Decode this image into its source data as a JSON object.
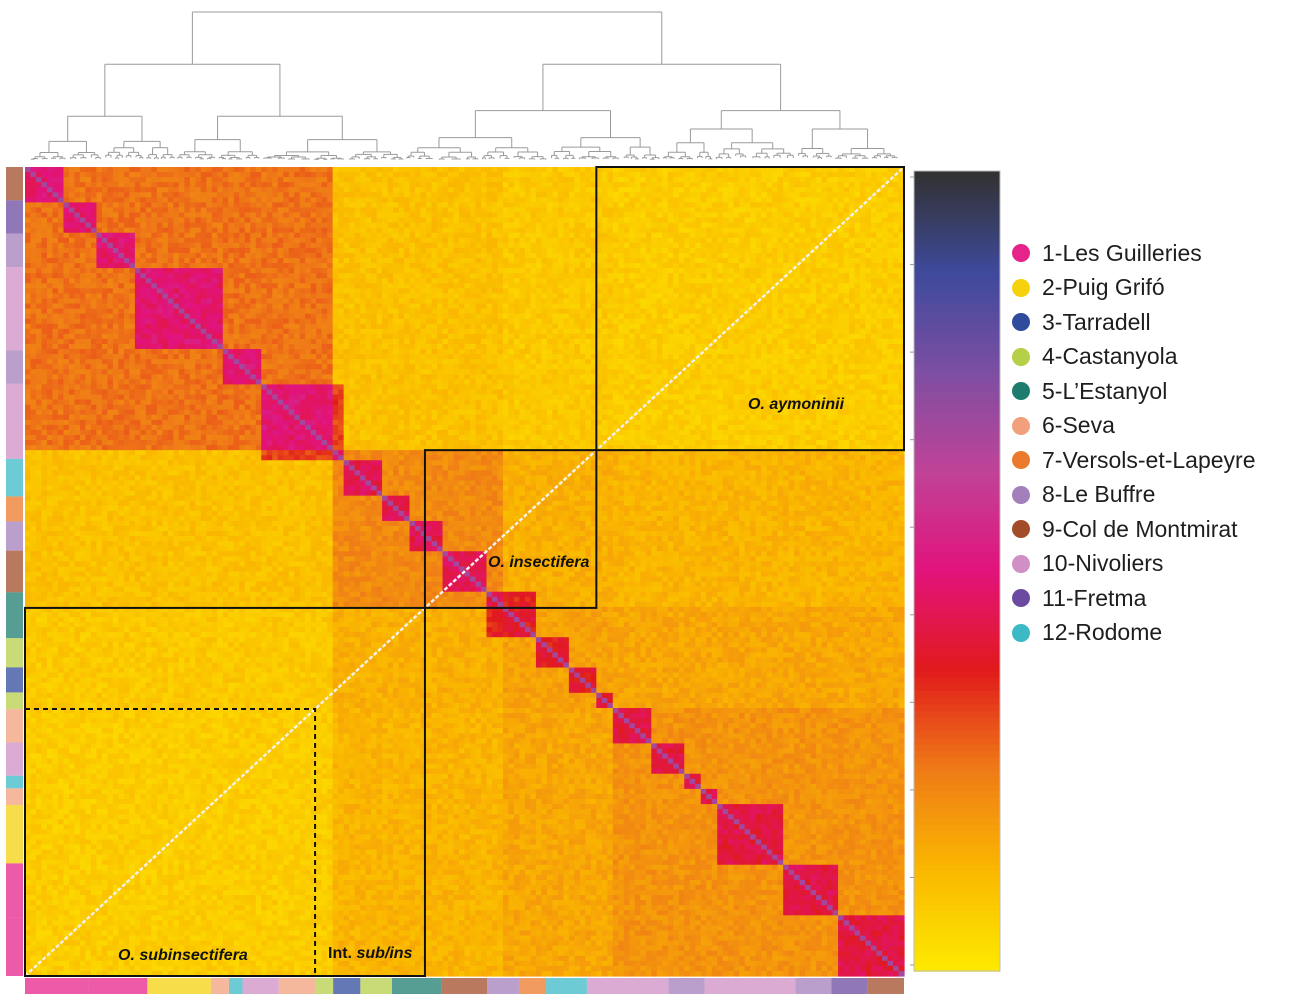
{
  "chart_data": {
    "type": "heatmap",
    "title": "",
    "matrix_size": 160,
    "scale": {
      "stops": [
        "#fde800",
        "#fab700",
        "#ef7b17",
        "#e11a1c",
        "#e2137c",
        "#c04398",
        "#7d4ea2",
        "#3e4a9c",
        "#323232"
      ]
    },
    "blocks": [
      {
        "label": "O. aymoninii",
        "start": 0.0,
        "end": 0.35
      },
      {
        "label": "O. insectifera",
        "start": 0.35,
        "end": 0.545
      },
      {
        "label": "Int. sub/ins",
        "start": 0.545,
        "end": 0.67
      },
      {
        "label": "O. subinsectifera",
        "start": 0.67,
        "end": 1.0
      }
    ],
    "block_labels": [
      {
        "name": "label-aymoninii",
        "text": "O. aymoninii",
        "italic_all": true
      },
      {
        "name": "label-insectifera",
        "text": "O. insectifera",
        "italic_all": true
      },
      {
        "name": "label-subinsectifera",
        "text": "O. subinsectifera",
        "italic_all": true
      },
      {
        "name": "label-intermediate",
        "prefix": "Int. ",
        "italic": "sub/ins"
      }
    ],
    "population_track": [
      {
        "pop": 9,
        "frac": 0.04
      },
      {
        "pop": 11,
        "frac": 0.04
      },
      {
        "pop": 8,
        "frac": 0.04
      },
      {
        "pop": 10,
        "frac": 0.1
      },
      {
        "pop": 8,
        "frac": 0.04
      },
      {
        "pop": 10,
        "frac": 0.09
      },
      {
        "pop": 12,
        "frac": 0.045
      },
      {
        "pop": 7,
        "frac": 0.03
      },
      {
        "pop": 8,
        "frac": 0.035
      },
      {
        "pop": 9,
        "frac": 0.05
      },
      {
        "pop": 5,
        "frac": 0.055
      },
      {
        "pop": 4,
        "frac": 0.035
      },
      {
        "pop": 3,
        "frac": 0.03
      },
      {
        "pop": 4,
        "frac": 0.02
      },
      {
        "pop": 6,
        "frac": 0.04
      },
      {
        "pop": 10,
        "frac": 0.04
      },
      {
        "pop": 12,
        "frac": 0.015
      },
      {
        "pop": 6,
        "frac": 0.02
      },
      {
        "pop": 2,
        "frac": 0.07
      },
      {
        "pop": 1,
        "frac": 0.065
      },
      {
        "pop": 1,
        "frac": 0.07
      }
    ]
  },
  "legend": {
    "items": [
      {
        "label": "1-Les Guilleries",
        "color": "#e6238b"
      },
      {
        "label": "2-Puig Grifó",
        "color": "#f6d20e"
      },
      {
        "label": "3-Tarradell",
        "color": "#2f4b9b"
      },
      {
        "label": "4-Castanyola",
        "color": "#b5cf49"
      },
      {
        "label": "5-L’Estanyol",
        "color": "#1e7c6f"
      },
      {
        "label": "6-Seva",
        "color": "#f2a07b"
      },
      {
        "label": "7-Versols-et-Lapeyre",
        "color": "#ec7a2c"
      },
      {
        "label": "8-Le Buffre",
        "color": "#a37fbc"
      },
      {
        "label": "9-Col de Montmirat",
        "color": "#a24c29"
      },
      {
        "label": "10-Nivoliers",
        "color": "#d08fc5"
      },
      {
        "label": "11-Fretma",
        "color": "#6b4aa0"
      },
      {
        "label": "12-Rodome",
        "color": "#3bbac5"
      }
    ]
  }
}
